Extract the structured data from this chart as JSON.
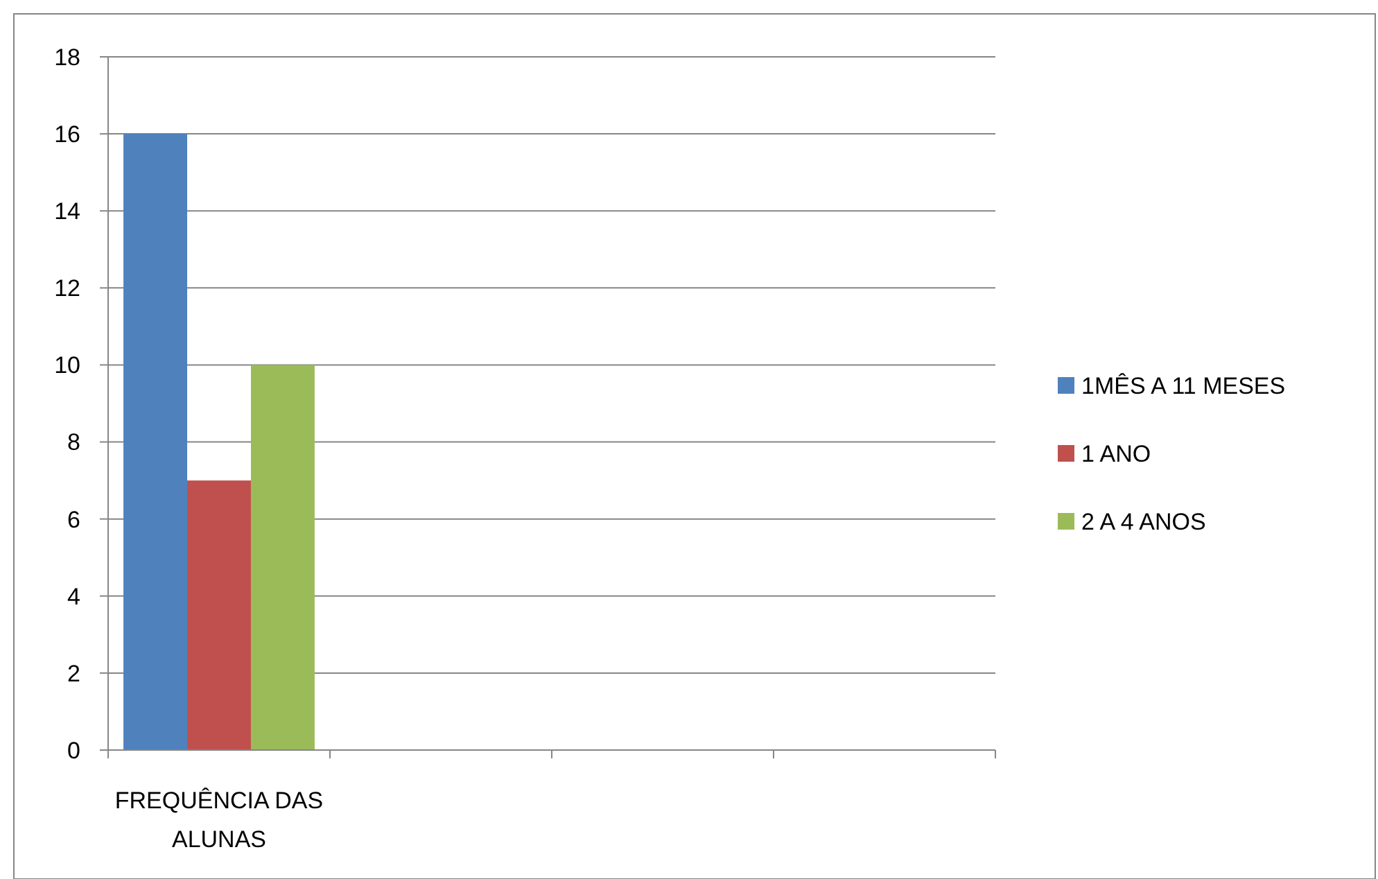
{
  "chart_data": {
    "type": "bar",
    "categories": [
      "FREQUÊNCIA DAS ALUNAS",
      null,
      null,
      null
    ],
    "series": [
      {
        "name": "1MÊS A 11 MESES",
        "color": "#4f81bd",
        "values": [
          16,
          null,
          null,
          null
        ]
      },
      {
        "name": "1 ANO",
        "color": "#c0504d",
        "values": [
          7,
          null,
          null,
          null
        ]
      },
      {
        "name": "2 A 4 ANOS",
        "color": "#9bbb59",
        "values": [
          10,
          null,
          null,
          null
        ]
      }
    ],
    "ylim": [
      0,
      18
    ],
    "yticks": [
      0,
      2,
      4,
      6,
      8,
      10,
      12,
      14,
      16,
      18
    ],
    "grid": "y",
    "legend": "right"
  }
}
